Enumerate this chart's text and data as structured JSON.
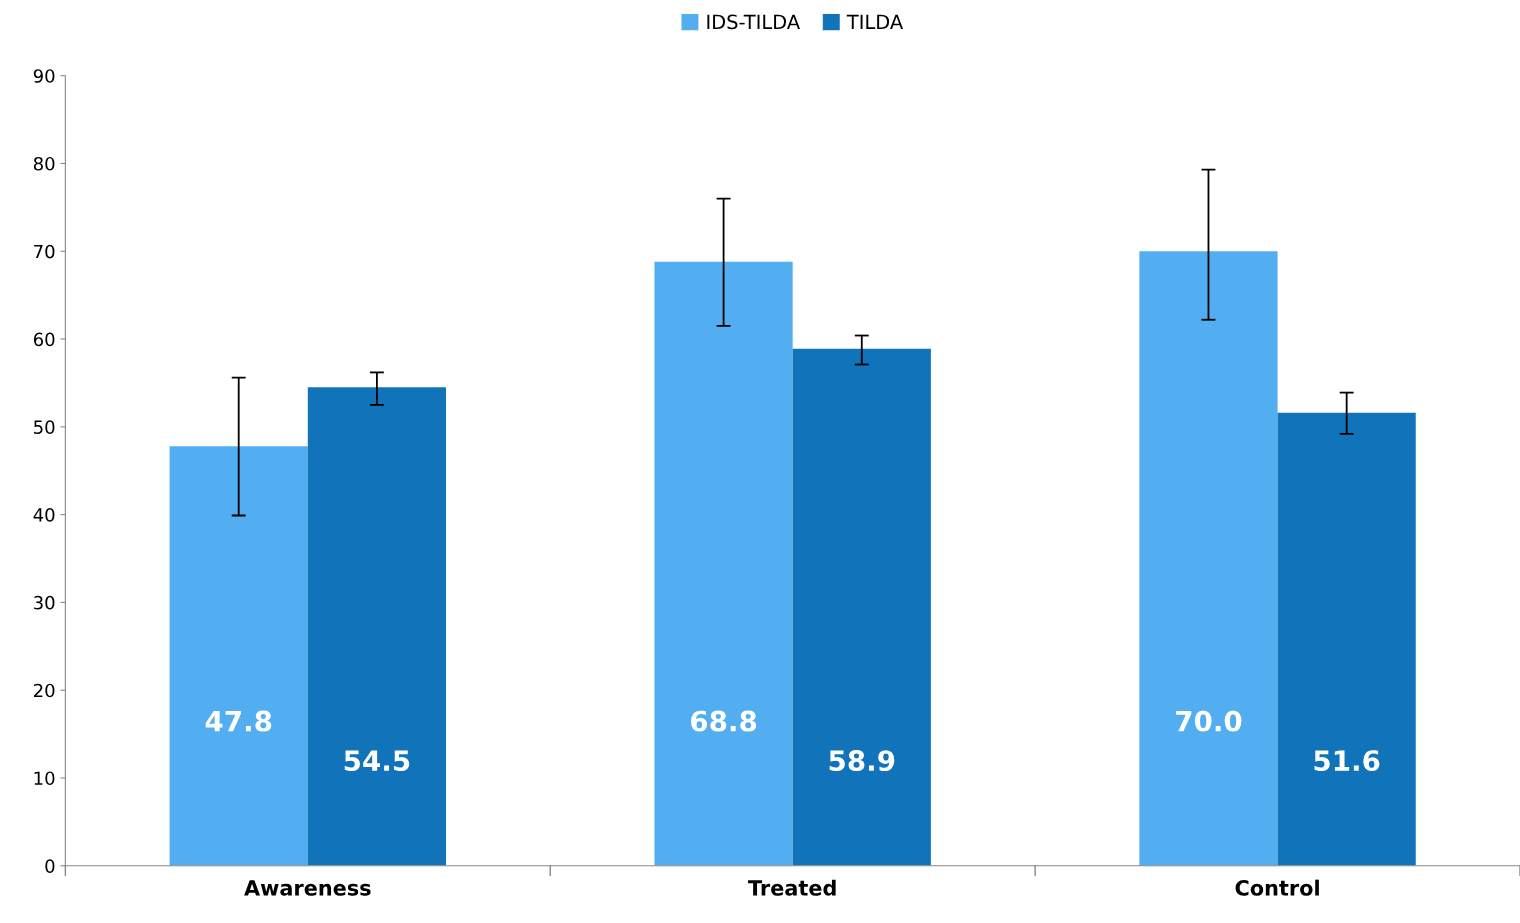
{
  "chart_data": {
    "type": "bar",
    "categories": [
      "Awareness",
      "Treated",
      "Control"
    ],
    "series": [
      {
        "name": "IDS-TILDA",
        "color": "#52aef0",
        "values": [
          47.8,
          68.8,
          70.0
        ],
        "value_labels": [
          "47.8",
          "68.8",
          "70.0"
        ],
        "errors": [
          [
            39.9,
            55.6
          ],
          [
            61.5,
            76.0
          ],
          [
            62.2,
            79.3
          ]
        ]
      },
      {
        "name": "TILDA",
        "color": "#1174ba",
        "values": [
          54.5,
          58.9,
          51.6
        ],
        "value_labels": [
          "54.5",
          "58.9",
          "51.6"
        ],
        "errors": [
          [
            52.5,
            56.2
          ],
          [
            57.1,
            60.4
          ],
          [
            49.2,
            53.9
          ]
        ]
      }
    ],
    "ylim": [
      0,
      90
    ],
    "yticks": [
      0,
      10,
      20,
      30,
      40,
      50,
      60,
      70,
      80,
      90
    ],
    "grid": false,
    "legend": "top"
  }
}
